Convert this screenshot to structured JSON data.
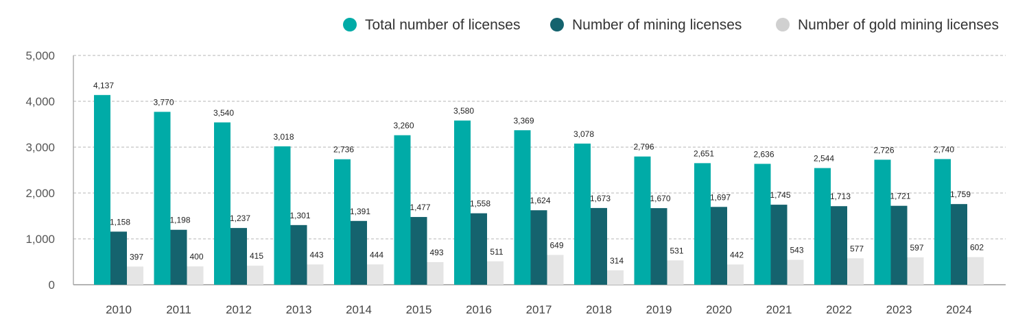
{
  "chart_data": {
    "type": "bar",
    "title": "",
    "xlabel": "",
    "ylabel": "",
    "ylim": [
      0,
      5000
    ],
    "yticks": [
      0,
      1000,
      2000,
      3000,
      4000,
      5000
    ],
    "ytick_labels": [
      "0",
      "1,000",
      "2,000",
      "3,000",
      "4,000",
      "5,000"
    ],
    "grid": true,
    "grid_style": "dashed",
    "legend_position": "top-right",
    "categories": [
      "2010",
      "2011",
      "2012",
      "2013",
      "2014",
      "2015",
      "2016",
      "2017",
      "2018",
      "2019",
      "2020",
      "2021",
      "2022",
      "2023",
      "2024"
    ],
    "series": [
      {
        "name": "Total number of licenses",
        "color": "#00aba7",
        "values": [
          4137,
          3770,
          3540,
          3018,
          2736,
          3260,
          3580,
          3369,
          3078,
          2796,
          2651,
          2636,
          2544,
          2726,
          2740
        ],
        "labels": [
          "4,137",
          "3,770",
          "3,540",
          "3,018",
          "2,736",
          "3,260",
          "3,580",
          "3,369",
          "3,078",
          "2,796",
          "2,651",
          "2,636",
          "2,544",
          "2,726",
          "2,740"
        ]
      },
      {
        "name": "Number of mining licenses",
        "color": "#15636e",
        "values": [
          1158,
          1198,
          1237,
          1301,
          1391,
          1477,
          1558,
          1624,
          1673,
          1670,
          1697,
          1745,
          1713,
          1721,
          1759
        ],
        "labels": [
          "1,158",
          "1,198",
          "1,237",
          "1,301",
          "1,391",
          "1,477",
          "1,558",
          "1,624",
          "1,673",
          "1,670",
          "1,697",
          "1,745",
          "1,713",
          "1,721",
          "1,759"
        ]
      },
      {
        "name": "Number of gold mining licenses",
        "color": "#e5e5e5",
        "legend_color": "#d0d0d0",
        "values": [
          397,
          400,
          415,
          443,
          444,
          493,
          511,
          649,
          314,
          531,
          442,
          543,
          577,
          597,
          602
        ],
        "labels": [
          "397",
          "400",
          "415",
          "443",
          "444",
          "493",
          "511",
          "649",
          "314",
          "531",
          "442",
          "543",
          "577",
          "597",
          "602"
        ]
      }
    ]
  }
}
